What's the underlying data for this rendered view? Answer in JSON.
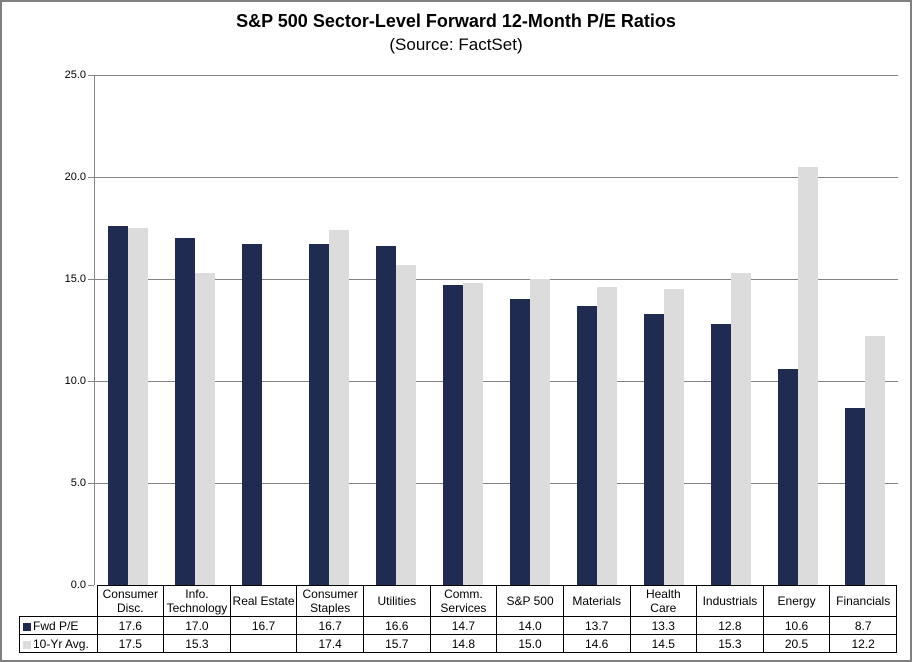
{
  "chart_data": {
    "type": "bar",
    "title": "S&P 500 Sector-Level Forward 12-Month P/E Ratios",
    "subtitle": "(Source: FactSet)",
    "categories": [
      "Consumer\nDisc.",
      "Info.\nTechnology",
      "Real Estate",
      "Consumer\nStaples",
      "Utilities",
      "Comm.\nServices",
      "S&P 500",
      "Materials",
      "Health\nCare",
      "Industrials",
      "Energy",
      "Financials"
    ],
    "series": [
      {
        "name": "Fwd P/E",
        "color": "#1F2B50",
        "values": [
          17.6,
          17.0,
          16.7,
          16.7,
          16.6,
          14.7,
          14.0,
          13.7,
          13.3,
          12.8,
          10.6,
          8.7
        ]
      },
      {
        "name": "10-Yr Avg.",
        "color": "#DCDCDC",
        "values": [
          17.5,
          15.3,
          null,
          17.4,
          15.7,
          14.8,
          15.0,
          14.6,
          14.5,
          15.3,
          20.5,
          12.2
        ]
      }
    ],
    "ylim": [
      0,
      25
    ],
    "yticks": [
      0,
      5,
      10,
      15,
      20,
      25
    ],
    "ytick_labels": [
      "0.0",
      "5.0",
      "10.0",
      "15.0",
      "20.0",
      "25.0"
    ],
    "grid": true,
    "legend_position": "table-rows-left",
    "colors": {
      "fwd_pe_bar": "#1F2B50",
      "ten_yr_avg_bar": "#DCDCDC",
      "gridline": "#848484",
      "table_border": "#000000",
      "outer_border": "#808080"
    }
  }
}
